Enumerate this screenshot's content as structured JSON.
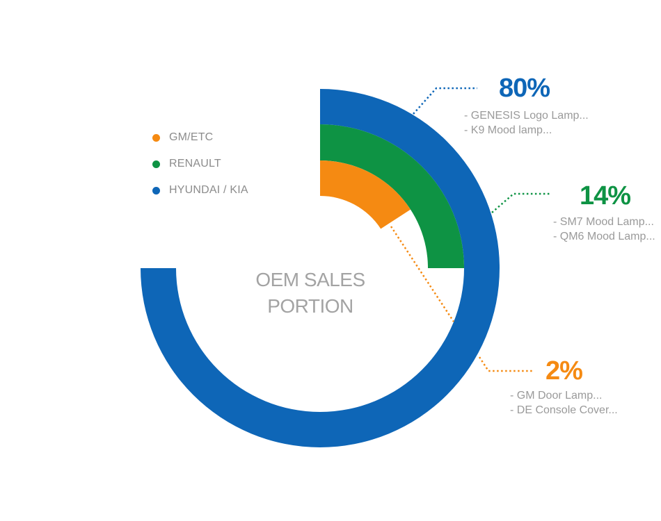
{
  "center_label": [
    "OEM SALES",
    "PORTION"
  ],
  "legend": [
    {
      "label": "GM/ETC",
      "color": "#f58a12"
    },
    {
      "label": "RENAULT",
      "color": "#0e9344"
    },
    {
      "label": "HYUNDAI / KIA",
      "color": "#0e66b7"
    }
  ],
  "callouts": [
    {
      "percent": "80%",
      "color": "#0e66b7",
      "lines": [
        "- GENESIS Logo Lamp...",
        "- K9 Mood lamp..."
      ]
    },
    {
      "percent": "14%",
      "color": "#0e9344",
      "lines": [
        "- SM7 Mood Lamp...",
        "- QM6 Mood Lamp..."
      ]
    },
    {
      "percent": "2%",
      "color": "#f58a12",
      "lines": [
        "- GM Door Lamp...",
        "- DE Console Cover..."
      ]
    }
  ],
  "chart_data": {
    "type": "pie",
    "style": "concentric radial rings",
    "categories": [
      "HYUNDAI / KIA",
      "RENAULT",
      "GM/ETC"
    ],
    "values": [
      80,
      14,
      2
    ],
    "unit": "%",
    "ring_sweep_degrees": [
      270,
      90,
      57
    ],
    "colors": [
      "#0e66b7",
      "#0e9344",
      "#f58a12"
    ],
    "legend_position": "upper-left",
    "details": {
      "HYUNDAI / KIA": [
        "- GENESIS Logo Lamp...",
        "- K9 Mood lamp..."
      ],
      "RENAULT": [
        "- SM7 Mood Lamp...",
        "- QM6 Mood Lamp..."
      ],
      "GM/ETC": [
        "- GM Door Lamp...",
        "- DE Console Cover..."
      ]
    }
  }
}
